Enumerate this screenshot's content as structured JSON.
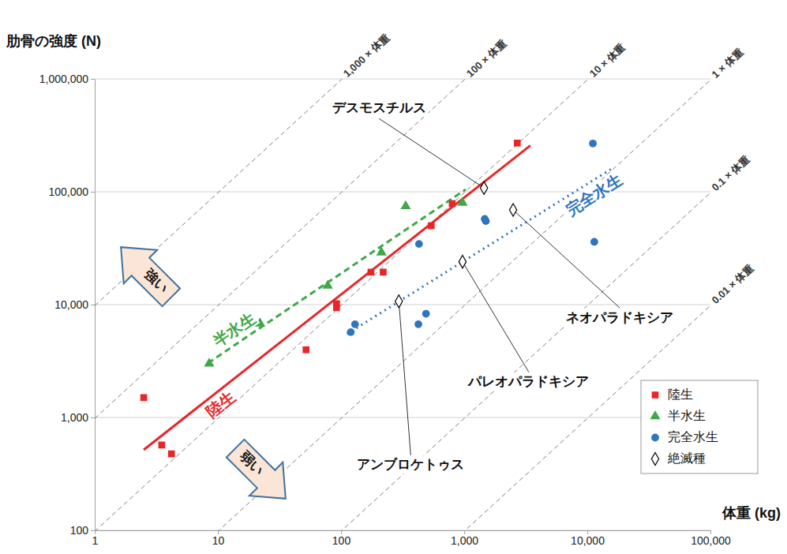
{
  "chart_data": {
    "type": "scatter",
    "x_label": "体重 (kg)",
    "y_label": "肋骨の強度 (N)",
    "log": true,
    "grid": "y",
    "legend": "lower right",
    "xlim": [
      1,
      100000
    ],
    "ylim": [
      100,
      1000000
    ],
    "xticks": [
      1,
      10,
      100,
      {
        "value": 1000,
        "label": "1,000"
      },
      {
        "value": 10000,
        "label": "10,000"
      },
      {
        "value": 100000,
        "label": "100,000"
      }
    ],
    "yticks": [
      100,
      {
        "value": 1000,
        "label": "1,000"
      },
      {
        "value": 10000,
        "label": "10,000"
      },
      {
        "value": 100000,
        "label": "100,000"
      },
      {
        "value": 1000000,
        "label": "1,000,000"
      }
    ],
    "series": [
      {
        "name": "陸生",
        "color": "#e8262a",
        "marker": "square",
        "x": [
          2.5,
          3.5,
          4.2,
          52,
          92,
          92,
          175,
          220,
          540,
          800,
          2700
        ],
        "values": [
          1500,
          570,
          476,
          3980,
          10200,
          9400,
          19400,
          19400,
          50000,
          78500,
          270000
        ]
      },
      {
        "name": "半水生",
        "color": "#3fa848",
        "marker": "triangle",
        "x": [
          8.5,
          22,
          78,
          213,
          335,
          970
        ],
        "values": [
          3000,
          6800,
          14700,
          29000,
          74500,
          80000
        ]
      },
      {
        "name": "完全水生",
        "color": "#2f74c0",
        "marker": "circle",
        "x": [
          120,
          130,
          425,
          490,
          430,
          1470,
          1500,
          11100,
          11400
        ],
        "values": [
          5700,
          6700,
          6700,
          8300,
          34500,
          57500,
          55000,
          268000,
          36000
        ]
      },
      {
        "name": "絶滅種",
        "color": "#000000",
        "marker": "open-diamond",
        "x": [
          1450,
          2500,
          970,
          295
        ],
        "values": [
          108000,
          69000,
          24000,
          10700
        ],
        "labels": [
          "デスモスチルス",
          "ネオパラドキシア",
          "パレオパラドキシア",
          "アンブロケトゥス"
        ]
      }
    ],
    "fit_lines": [
      {
        "label": "陸生",
        "color": "#e8262a",
        "line_style": "solid",
        "x": [
          2.5,
          3450
        ],
        "values": [
          517,
          257000
        ]
      },
      {
        "label": "半水生",
        "color": "#3fa848",
        "line_style": "dashed",
        "x": [
          8.3,
          1030
        ],
        "values": [
          3030,
          105000
        ]
      },
      {
        "label": "完全水生",
        "color": "#2f74c0",
        "line_style": "dotted",
        "x": [
          112,
          16500
        ],
        "values": [
          5500,
          165000
        ]
      }
    ],
    "reference_lines": [
      {
        "label": "1,000 × 体重",
        "color": "#7f7f7f",
        "line_style": "dashed",
        "x": [
          1,
          100000
        ],
        "values": [
          9800,
          980000000
        ]
      },
      {
        "label": "100 × 体重",
        "color": "#7f7f7f",
        "line_style": "dashed",
        "x": [
          1,
          100000
        ],
        "values": [
          980,
          98000000
        ]
      },
      {
        "label": "10 × 体重",
        "color": "#7f7f7f",
        "line_style": "dashed",
        "x": [
          1,
          100000
        ],
        "values": [
          98,
          9800000
        ]
      },
      {
        "label": "1 × 体重",
        "color": "#7f7f7f",
        "line_style": "dashed",
        "x": [
          1,
          100000
        ],
        "values": [
          9.8,
          980000
        ]
      },
      {
        "label": "0.1 × 体重",
        "color": "#7f7f7f",
        "line_style": "dashed",
        "x": [
          1,
          100000
        ],
        "values": [
          0.98,
          98000
        ]
      },
      {
        "label": "0.01 × 体重",
        "color": "#7f7f7f",
        "line_style": "dashed",
        "x": [
          1,
          100000
        ],
        "values": [
          0.098,
          9800
        ]
      }
    ],
    "annotations": [
      {
        "text": "強い"
      },
      {
        "text": "弱い"
      }
    ]
  }
}
